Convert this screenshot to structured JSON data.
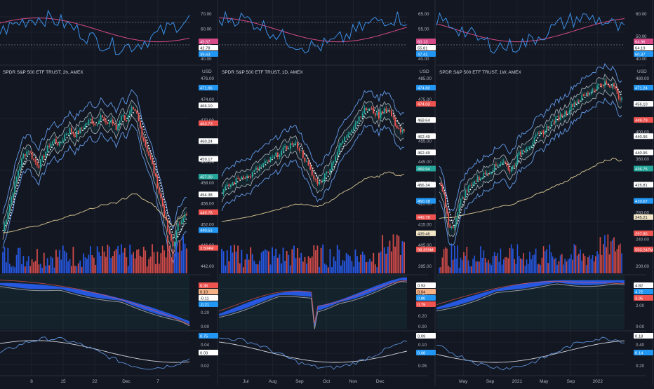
{
  "colors": {
    "background": "#131722",
    "grid": "#1e222d",
    "axis_text": "#b2b5be",
    "divider": "#2a2e39",
    "bull": "#26a69a",
    "bear": "#ef5350",
    "vol_bull": "#2962ff",
    "vol_bear": "#ef5350",
    "bb_band": "#5b8fd8",
    "dots": "#ffffff",
    "env_white": "#d1d4dc",
    "sma_long": "#c9b98a",
    "rsi_line": "#3a8ee6",
    "rsi_ma": "#d64a87",
    "macd_fill_up": "#2962ff",
    "macd_fill_down": "#9598a1",
    "osc_line": "#5b8fd8"
  },
  "panels": [
    {
      "id": "panel-2h",
      "title": "SPDR S&P 500 ETF TRUST, 2h, AMEX",
      "currency": "USD",
      "x_ticks": [
        "8",
        "15",
        "22",
        "Dec",
        "7"
      ],
      "price_ticks": [
        "476.00",
        "474.00",
        "470.00",
        "466.00",
        "460.24",
        "458.00",
        "456.00",
        "452.00",
        "446.00",
        "442.00"
      ],
      "rsi_ticks": [
        "70.00",
        "60.00",
        "50.00",
        "40.00"
      ],
      "macd_ticks": [
        "0.60",
        "0.40",
        "0.20",
        "0.00"
      ],
      "osc_ticks": [
        "0.04",
        "0.02"
      ],
      "price_badges": [
        {
          "text": "471.96",
          "color": "#2196f3"
        },
        {
          "text": "466.10",
          "color": "#ffffff"
        },
        {
          "text": "463.73",
          "color": "#ef5350"
        },
        {
          "text": "460.24",
          "color": "#ffffff"
        },
        {
          "text": "459.17",
          "color": "#ffffff"
        },
        {
          "text": "457.00",
          "color": "#26a69a"
        },
        {
          "text": "454.38",
          "color": "#ffffff"
        },
        {
          "text": "449.78",
          "color": "#ef5350"
        },
        {
          "text": "440.51",
          "color": "#2196f3"
        },
        {
          "text": "2.504M",
          "color": "#ef5350"
        }
      ],
      "rsi_badges": [
        {
          "text": "45.57",
          "color": "#d64a87"
        },
        {
          "text": "42.78",
          "color": "#ffffff"
        },
        {
          "text": "39.63",
          "color": "#2196f3"
        }
      ],
      "macd_badges": [
        {
          "text": "0.36",
          "color": "#ef5350"
        },
        {
          "text": "0.10",
          "color": "#f4b183"
        },
        {
          "text": "-0.11",
          "color": "#ffffff"
        },
        {
          "text": "-0.21",
          "color": "#2196f3"
        }
      ],
      "osc_badges": [
        {
          "text": "0.75",
          "color": "#2196f3"
        },
        {
          "text": "0.03",
          "color": "#ffffff"
        }
      ],
      "chart_data": {
        "type": "line",
        "title": "SPDR S&P 500 ETF TRUST, 2h, AMEX",
        "ylim": [
          440,
          478
        ],
        "series": [
          {
            "name": "",
            "values": [
              447,
              451,
              455,
              459,
              462,
              463,
              461,
              460,
              462,
              464,
              465,
              464,
              466,
              467,
              466,
              467,
              468,
              469,
              468,
              470,
              468,
              469,
              467,
              470,
              469,
              471,
              470,
              466,
              463,
              460,
              456,
              452,
              447,
              444,
              448,
              450
            ]
          }
        ]
      }
    },
    {
      "id": "panel-1d",
      "title": "SPDR S&P 500 ETF TRUST, 1D, AMEX",
      "currency": "USD",
      "x_ticks": [
        "Jul",
        "Aug",
        "Sep",
        "Oct",
        "Nov",
        "Dec"
      ],
      "price_ticks": [
        "485.00",
        "475.00",
        "465.00",
        "455.00",
        "445.00",
        "435.00",
        "425.00",
        "415.00",
        "405.00",
        "395.00"
      ],
      "rsi_ticks": [
        "65.00",
        "55.00",
        "45.00",
        "40.00"
      ],
      "macd_ticks": [
        "0.80",
        "0.60",
        "0.40",
        "0.20",
        "0.00"
      ],
      "osc_ticks": [
        "0.10",
        "0.05"
      ],
      "price_badges": [
        {
          "text": "474.80",
          "color": "#2196f3"
        },
        {
          "text": "474.03",
          "color": "#ef5350"
        },
        {
          "text": "468.64",
          "color": "#ffffff"
        },
        {
          "text": "462.49",
          "color": "#ffffff"
        },
        {
          "text": "462.49",
          "color": "#ffffff"
        },
        {
          "text": "459.94",
          "color": "#26a69a"
        },
        {
          "text": "456.34",
          "color": "#ffffff"
        },
        {
          "text": "450.18",
          "color": "#2196f3"
        },
        {
          "text": "449.78",
          "color": "#ef5350"
        },
        {
          "text": "439.46",
          "color": "#f2e6c6"
        },
        {
          "text": "98.359M",
          "color": "#ef5350"
        }
      ],
      "rsi_badges": [
        {
          "text": "60.13",
          "color": "#d64a87"
        },
        {
          "text": "55.81",
          "color": "#ffffff"
        },
        {
          "text": "47.41",
          "color": "#2196f3"
        }
      ],
      "macd_badges": [
        {
          "text": "0.93",
          "color": "#ffffff"
        },
        {
          "text": "0.84",
          "color": "#f4b183"
        },
        {
          "text": "0.80",
          "color": "#2196f3"
        },
        {
          "text": "0.79",
          "color": "#ef5350"
        }
      ],
      "osc_badges": [
        {
          "text": "0.09",
          "color": "#ffffff"
        },
        {
          "text": "0.08",
          "color": "#2196f3"
        }
      ],
      "chart_data": {
        "type": "line",
        "title": "SPDR S&P 500 ETF TRUST, 1D, AMEX",
        "ylim": [
          390,
          487
        ],
        "series": [
          {
            "name": "",
            "values": [
              428,
              430,
              432,
              434,
              436,
              435,
              438,
              440,
              442,
              444,
              446,
              448,
              450,
              452,
              451,
              446,
              440,
              434,
              432,
              436,
              440,
              446,
              452,
              456,
              460,
              464,
              468,
              470,
              468,
              466,
              470,
              468,
              462,
              458
            ]
          }
        ]
      }
    },
    {
      "id": "panel-1w",
      "title": "SPDR S&P 500 ETF TRUST, 1W, AMEX",
      "currency": "USD",
      "x_ticks": [
        "May",
        "Sep",
        "2021",
        "May",
        "Sep",
        "2022"
      ],
      "price_ticks": [
        "480.00",
        "440.00",
        "400.00",
        "360.00",
        "320.00",
        "280.00",
        "240.00",
        "200.00"
      ],
      "rsi_ticks": [
        "60.00",
        "50.00",
        "40.00"
      ],
      "macd_ticks": [
        "4.00",
        "2.00",
        "0.00"
      ],
      "osc_ticks": [
        "0.40",
        "0.20"
      ],
      "price_badges": [
        {
          "text": "471.24",
          "color": "#2196f3"
        },
        {
          "text": "456.10",
          "color": "#ffffff"
        },
        {
          "text": "449.79",
          "color": "#ef5350"
        },
        {
          "text": "440.96",
          "color": "#ffffff"
        },
        {
          "text": "440.96",
          "color": "#ffffff"
        },
        {
          "text": "436.75",
          "color": "#26a69a"
        },
        {
          "text": "425.81",
          "color": "#ffffff"
        },
        {
          "text": "410.67",
          "color": "#2196f3"
        },
        {
          "text": "345.21",
          "color": "#f2e6c6"
        },
        {
          "text": "297.85",
          "color": "#ef5350"
        },
        {
          "text": "593.247M",
          "color": "#ef5350"
        }
      ],
      "rsi_badges": [
        {
          "text": "64.96",
          "color": "#d64a87"
        },
        {
          "text": "64.19",
          "color": "#ffffff"
        },
        {
          "text": "60.37",
          "color": "#2196f3"
        }
      ],
      "macd_badges": [
        {
          "text": "4.82",
          "color": "#ffffff"
        },
        {
          "text": "4.72",
          "color": "#2196f3"
        },
        {
          "text": "3.95",
          "color": "#ef5350"
        }
      ],
      "osc_badges": [
        {
          "text": "0.18",
          "color": "#ffffff"
        },
        {
          "text": "0.14",
          "color": "#2196f3"
        }
      ],
      "chart_data": {
        "type": "line",
        "title": "SPDR S&P 500 ETF TRUST, 1W, AMEX",
        "ylim": [
          195,
          485
        ],
        "series": [
          {
            "name": "",
            "values": [
              320,
              300,
              260,
              250,
              280,
              300,
              310,
              320,
              325,
              330,
              335,
              340,
              345,
              350,
              355,
              340,
              345,
              360,
              370,
              375,
              380,
              390,
              395,
              400,
              410,
              415,
              420,
              425,
              430,
              440,
              445,
              450,
              455,
              460,
              465,
              470,
              472,
              465,
              468,
              450
            ]
          }
        ]
      }
    }
  ]
}
